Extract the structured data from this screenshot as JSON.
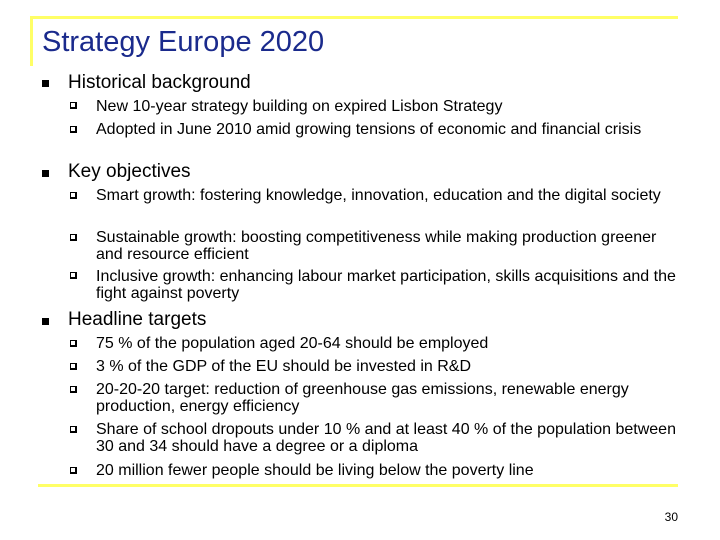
{
  "slide": {
    "title": "Strategy Europe 2020",
    "page_number": "30",
    "accent_color": "#ffff66",
    "title_color": "#1a2a8c"
  },
  "sections": [
    {
      "heading": "Historical background",
      "items": [
        "New 10-year strategy building on expired Lisbon Strategy",
        "Adopted in June 2010 amid growing tensions of economic and financial crisis"
      ]
    },
    {
      "heading": "Key objectives",
      "items": [
        "Smart growth: fostering knowledge, innovation, education and the digital society",
        "Sustainable growth: boosting competitiveness while making production greener and resource efficient",
        "Inclusive growth: enhancing labour market participation, skills acquisitions and the fight against poverty"
      ]
    },
    {
      "heading": "Headline targets",
      "items": [
        "75 % of the population aged 20-64 should be employed",
        "3 % of the GDP of the EU should be invested in R&D",
        "20-20-20 target: reduction of greenhouse gas emissions, renewable energy production, energy efficiency",
        "Share of school dropouts under 10 % and at least 40 % of the population between 30 and 34 should have a degree or a diploma",
        "20 million fewer people should be living below the poverty line"
      ]
    }
  ]
}
